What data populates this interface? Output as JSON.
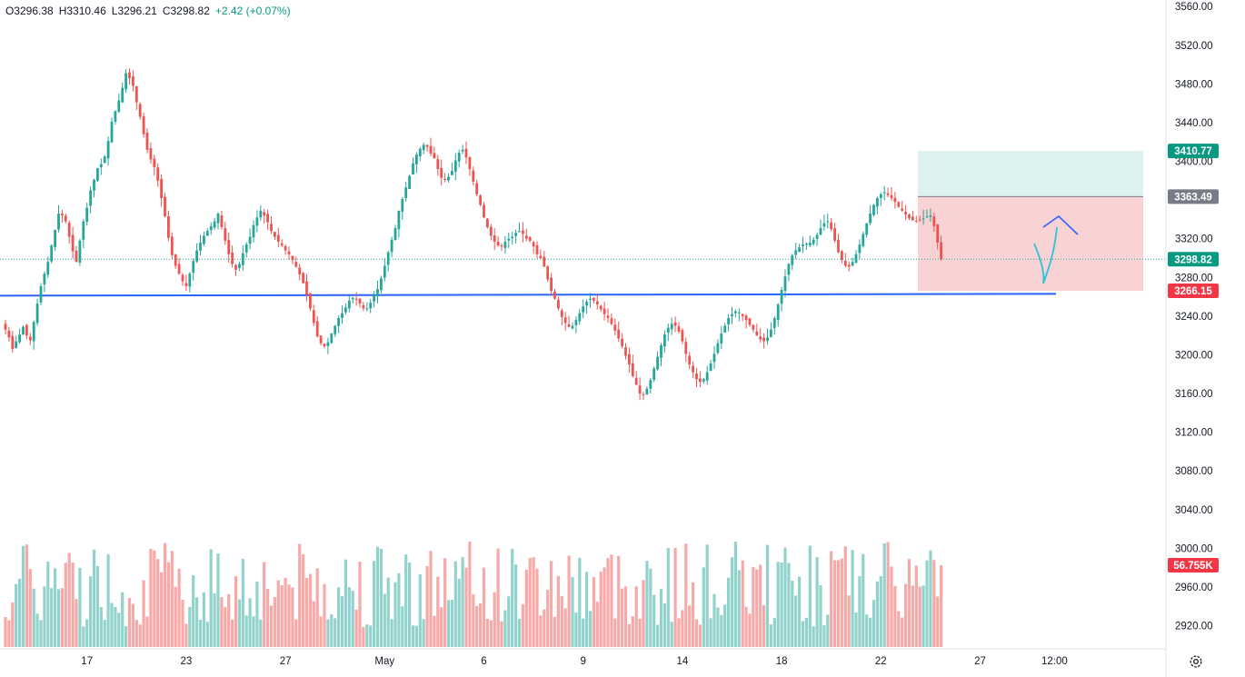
{
  "ohlc": {
    "open": "O3296.38",
    "high": "H3310.46",
    "low": "L3296.21",
    "close": "C3298.82",
    "change": "+2.42 (+0.07%)"
  },
  "colors": {
    "up": "#26a69a",
    "down": "#ef5350",
    "up_volume": "#92d2cc",
    "down_volume": "#f7a9a7",
    "support_line": "#2962ff",
    "target_zone": "#d1ece8",
    "stop_zone": "#f8c7c9",
    "drawing_cyan": "#26c6da",
    "drawing_blue": "#2962ff"
  },
  "icons": {
    "settings": "gear-icon"
  },
  "chart_data": {
    "type": "candlestick",
    "symbol_timeframe": "intraday",
    "y_axis": {
      "ylim": [
        2898,
        3563
      ],
      "ticks": [
        2920,
        2960,
        3000,
        3040,
        3080,
        3120,
        3160,
        3200,
        3240,
        3280,
        3320,
        3360,
        3400,
        3440,
        3480,
        3520,
        3560
      ],
      "tick_labels": [
        "2920.00",
        "2960.00",
        "3000.00",
        "3040.00",
        "3080.00",
        "3120.00",
        "3160.00",
        "3200.00",
        "3240.00",
        "3280.00",
        "3320.00",
        "3360.00",
        "3400.00",
        "3440.00",
        "3480.00",
        "3520.00",
        "3560.00"
      ]
    },
    "x_axis": {
      "tick_labels": [
        "17",
        "23",
        "27",
        "May",
        "6",
        "9",
        "14",
        "18",
        "22",
        "27",
        "12:00"
      ],
      "tick_bar_index": [
        23,
        51,
        79,
        107,
        135,
        163,
        191,
        219,
        247,
        275,
        296
      ]
    },
    "closes": [
      3226,
      3218,
      3206,
      3214,
      3221,
      3229,
      3220,
      3215,
      3234,
      3253,
      3271,
      3284,
      3296,
      3313,
      3329,
      3346,
      3344,
      3338,
      3322,
      3307,
      3296,
      3318,
      3338,
      3352,
      3370,
      3381,
      3393,
      3397,
      3405,
      3421,
      3441,
      3452,
      3463,
      3476,
      3491,
      3486,
      3478,
      3461,
      3446,
      3428,
      3412,
      3402,
      3394,
      3380,
      3362,
      3343,
      3321,
      3303,
      3292,
      3284,
      3276,
      3271,
      3284,
      3297,
      3308,
      3316,
      3323,
      3328,
      3333,
      3338,
      3346,
      3332,
      3318,
      3304,
      3294,
      3288,
      3294,
      3305,
      3314,
      3322,
      3334,
      3342,
      3349,
      3344,
      3337,
      3328,
      3322,
      3317,
      3313,
      3308,
      3304,
      3298,
      3291,
      3283,
      3274,
      3262,
      3248,
      3233,
      3219,
      3212,
      3209,
      3213,
      3222,
      3230,
      3238,
      3243,
      3249,
      3256,
      3259,
      3257,
      3253,
      3248,
      3248,
      3254,
      3262,
      3268,
      3279,
      3292,
      3306,
      3319,
      3331,
      3349,
      3361,
      3373,
      3385,
      3398,
      3407,
      3413,
      3417,
      3415,
      3408,
      3403,
      3392,
      3383,
      3381,
      3384,
      3390,
      3401,
      3409,
      3412,
      3404,
      3392,
      3379,
      3366,
      3355,
      3342,
      3332,
      3323,
      3317,
      3313,
      3312,
      3317,
      3320,
      3322,
      3326,
      3328,
      3325,
      3320,
      3318,
      3312,
      3304,
      3300,
      3291,
      3278,
      3266,
      3258,
      3248,
      3239,
      3233,
      3229,
      3230,
      3236,
      3243,
      3250,
      3255,
      3258,
      3256,
      3252,
      3247,
      3242,
      3238,
      3232,
      3225,
      3217,
      3209,
      3199,
      3190,
      3178,
      3169,
      3160,
      3159,
      3165,
      3174,
      3186,
      3198,
      3210,
      3221,
      3228,
      3232,
      3230,
      3224,
      3214,
      3201,
      3190,
      3182,
      3175,
      3172,
      3175,
      3182,
      3191,
      3201,
      3212,
      3222,
      3230,
      3238,
      3242,
      3245,
      3244,
      3240,
      3236,
      3231,
      3226,
      3220,
      3216,
      3214,
      3218,
      3226,
      3238,
      3252,
      3267,
      3281,
      3294,
      3303,
      3308,
      3311,
      3314,
      3315,
      3316,
      3319,
      3324,
      3331,
      3336,
      3338,
      3330,
      3318,
      3306,
      3298,
      3292,
      3291,
      3296,
      3304,
      3314,
      3325,
      3336,
      3346,
      3355,
      3362,
      3366,
      3368,
      3365,
      3362,
      3358,
      3353,
      3349,
      3345,
      3341,
      3339,
      3338,
      3339,
      3341,
      3343,
      3344,
      3333,
      3316,
      3298.82
    ],
    "last_price": 3298.82,
    "volume_ylim": [
      0,
      1
    ],
    "volume_scale": "relative",
    "price_tags": [
      {
        "label": "3410.77",
        "value": 3410.77,
        "color": "#089981"
      },
      {
        "label": "3363.49",
        "value": 3363.49,
        "color": "#787b86"
      },
      {
        "label": "3298.82",
        "value": 3298.82,
        "color": "#089981"
      },
      {
        "label": "3266.15",
        "value": 3266.15,
        "color": "#f23645"
      }
    ],
    "volume_tag": {
      "label": "56.755K",
      "color": "#f23645"
    },
    "support_level": 3263,
    "position_tool": {
      "target": 3410.77,
      "entry": 3363.49,
      "stop": 3266.15,
      "start_bar": 273,
      "end_bar": 302
    },
    "grid": false
  }
}
